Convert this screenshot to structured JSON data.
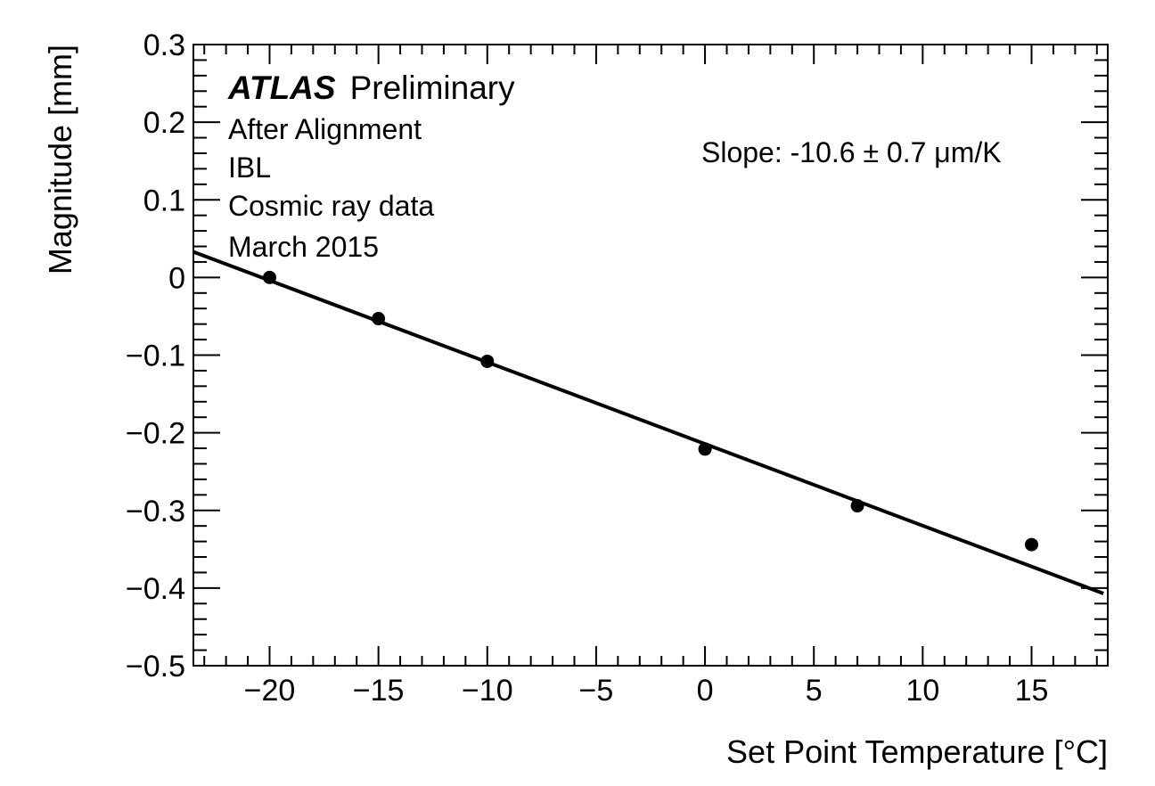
{
  "chart_data": {
    "type": "scatter",
    "xlabel": "Set Point Temperature [°C]",
    "ylabel": "Magnitude [mm]",
    "xlim": [
      -23.5,
      18.5
    ],
    "ylim": [
      -0.5,
      0.3
    ],
    "x_ticks": [
      -20,
      -15,
      -10,
      -5,
      0,
      5,
      10,
      15
    ],
    "x_tick_labels": [
      "−20",
      "−15",
      "−10",
      "−5",
      "0",
      "5",
      "10",
      "15"
    ],
    "y_ticks": [
      0.3,
      0.2,
      0.1,
      0,
      -0.1,
      -0.2,
      -0.3,
      -0.4,
      -0.5
    ],
    "y_tick_labels": [
      "0.3",
      "0.2",
      "0.1",
      "0",
      "−0.1",
      "−0.2",
      "−0.3",
      "−0.4",
      "−0.5"
    ],
    "grid": false,
    "series": [
      {
        "points": [
          {
            "x": -20,
            "y": 0.0
          },
          {
            "x": -15,
            "y": -0.053
          },
          {
            "x": -10,
            "y": -0.108
          },
          {
            "x": 0,
            "y": -0.221
          },
          {
            "x": 7,
            "y": -0.294
          },
          {
            "x": 15,
            "y": -0.344
          }
        ]
      }
    ],
    "fit_line": {
      "start": {
        "x": -23.5,
        "y": 0.033
      },
      "end": {
        "x": 18.3,
        "y": -0.407
      }
    }
  },
  "annotations": {
    "atlas": "ATLAS",
    "preliminary": "Preliminary",
    "line1": "After Alignment",
    "line2": "IBL",
    "line3": "Cosmic ray data",
    "line4": "March 2015",
    "slope": "Slope: -10.6 ± 0.7 μm/K"
  }
}
